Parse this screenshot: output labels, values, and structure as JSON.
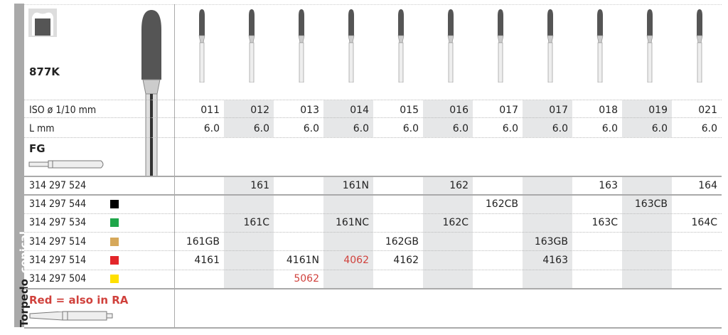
{
  "side_label": {
    "bold": "Torpedo",
    "light": "conical"
  },
  "product": "877K",
  "shank": "FG",
  "iso_label": "ISO ø 1/10 mm",
  "l_label": "L mm",
  "iso": [
    "011",
    "012",
    "013",
    "014",
    "015",
    "016",
    "017",
    "017",
    "018",
    "019",
    "021"
  ],
  "lengths": [
    "6.0",
    "6.0",
    "6.0",
    "6.0",
    "6.0",
    "6.0",
    "6.0",
    "6.0",
    "6.0",
    "6.0",
    "6.0"
  ],
  "rows": [
    {
      "code": "314 297 524",
      "color": "",
      "cells": [
        "",
        "161",
        "",
        "161N",
        "",
        "162",
        "",
        "",
        "163",
        "",
        "164"
      ]
    },
    {
      "code": "314 297 544",
      "color": "#000000",
      "cells": [
        "",
        "",
        "",
        "",
        "",
        "",
        "162CB",
        "",
        "",
        "163CB",
        ""
      ]
    },
    {
      "code": "314 297 534",
      "color": "#1fa64a",
      "cells": [
        "",
        "161C",
        "",
        "161NC",
        "",
        "162C",
        "",
        "",
        "163C",
        "",
        "164C"
      ]
    },
    {
      "code": "314 297 514",
      "color": "#d6a85a",
      "cells": [
        "161GB",
        "",
        "",
        "",
        "162GB",
        "",
        "",
        "163GB",
        "",
        "",
        ""
      ]
    },
    {
      "code": "314 297 514",
      "color": "#e3262a",
      "cells": [
        "4161",
        "",
        "4161N",
        "4062",
        "4162",
        "",
        "",
        "4163",
        "",
        "",
        ""
      ]
    },
    {
      "code": "314 297 504",
      "color": "#ffe000",
      "cells": [
        "",
        "",
        "5062",
        "",
        "",
        "",
        "",
        "",
        "",
        "",
        ""
      ]
    }
  ],
  "red_cells": [
    "4062",
    "5062"
  ],
  "note": "Red = also in RA",
  "colors": {
    "shade": "#e6e7e8",
    "red": "#d0413c",
    "side": "#a9a9a9"
  }
}
